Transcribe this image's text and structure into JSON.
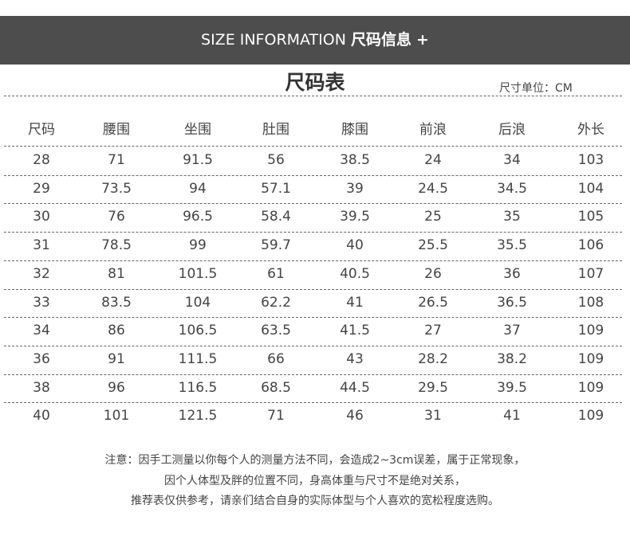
{
  "banner": {
    "en": "SIZE INFORMATION",
    "cn": "尺码信息",
    "plus": "+"
  },
  "title": "尺码表",
  "unit": "尺寸单位：CM",
  "table": {
    "headers": [
      "尺码",
      "腰围",
      "坐围",
      "肚围",
      "膝围",
      "前浪",
      "后浪",
      "外长"
    ],
    "rows": [
      [
        "28",
        "71",
        "91.5",
        "56",
        "38.5",
        "24",
        "34",
        "103"
      ],
      [
        "29",
        "73.5",
        "94",
        "57.1",
        "39",
        "24.5",
        "34.5",
        "104"
      ],
      [
        "30",
        "76",
        "96.5",
        "58.4",
        "39.5",
        "25",
        "35",
        "105"
      ],
      [
        "31",
        "78.5",
        "99",
        "59.7",
        "40",
        "25.5",
        "35.5",
        "106"
      ],
      [
        "32",
        "81",
        "101.5",
        "61",
        "40.5",
        "26",
        "36",
        "107"
      ],
      [
        "33",
        "83.5",
        "104",
        "62.2",
        "41",
        "26.5",
        "36.5",
        "108"
      ],
      [
        "34",
        "86",
        "106.5",
        "63.5",
        "41.5",
        "27",
        "37",
        "109"
      ],
      [
        "36",
        "91",
        "111.5",
        "66",
        "43",
        "28.2",
        "38.2",
        "109"
      ],
      [
        "38",
        "96",
        "116.5",
        "68.5",
        "44.5",
        "29.5",
        "39.5",
        "109"
      ],
      [
        "40",
        "101",
        "121.5",
        "71",
        "46",
        "31",
        "41",
        "109"
      ]
    ]
  },
  "notes": [
    "注意：因手工测量以你每个人的测量方法不同，会造成2~3cm误差，属于正常现象，",
    "因个人体型及胖的位置不同，身高体重与尺寸不是绝对关系，",
    "推荐表仅供参考，请亲们结合自身的实际体型与个人喜欢的宽松程度选购。"
  ],
  "colors": {
    "banner_bg": "#4d4d4d",
    "text": "#444444"
  }
}
